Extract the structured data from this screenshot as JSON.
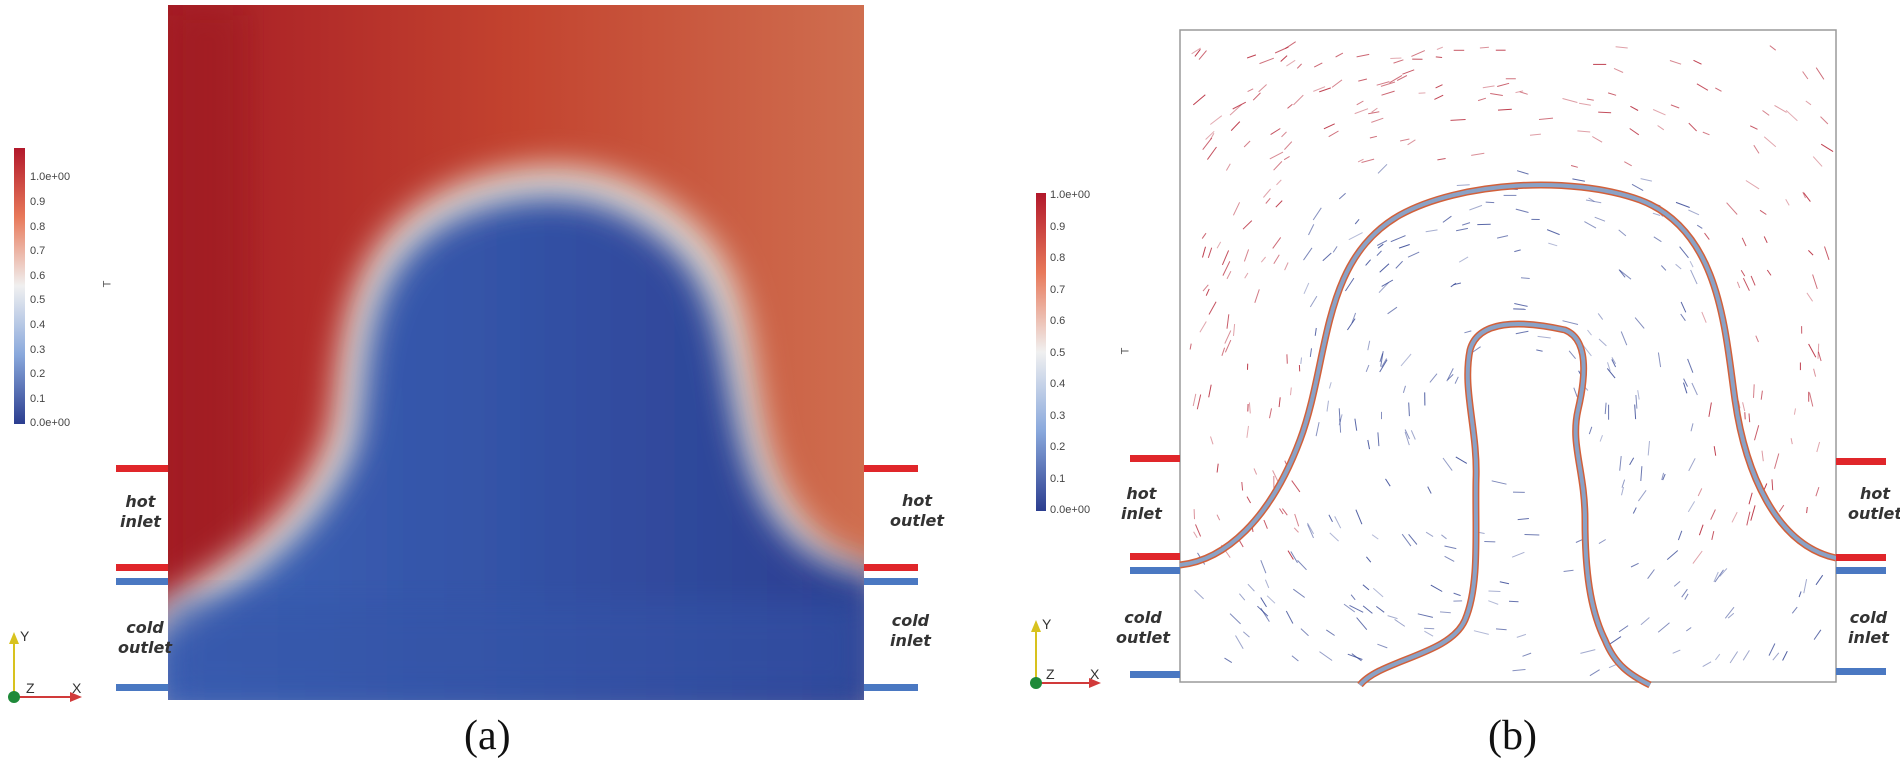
{
  "colorbar": {
    "title": "T",
    "ticks": [
      "1.0e+00",
      "0.9",
      "0.8",
      "0.7",
      "0.6",
      "0.5",
      "0.4",
      "0.3",
      "0.2",
      "0.1",
      "0.0e+00"
    ]
  },
  "ports": {
    "hot_inlet": "hot\ninlet",
    "hot_outlet": "hot\noutlet",
    "cold_inlet": "cold\ninlet",
    "cold_outlet": "cold\noutlet"
  },
  "axes_triad": {
    "y": "Y",
    "z": "Z",
    "x": "X"
  },
  "panels": {
    "a": "(a)",
    "b": "(b)"
  },
  "colors": {
    "hot": "#b2182b",
    "cold": "#2b3d8f",
    "hot_line": "#e0262a",
    "cold_line": "#4a78c2",
    "interface": "#8a96a8",
    "interface_edge": "#d2603a"
  }
}
